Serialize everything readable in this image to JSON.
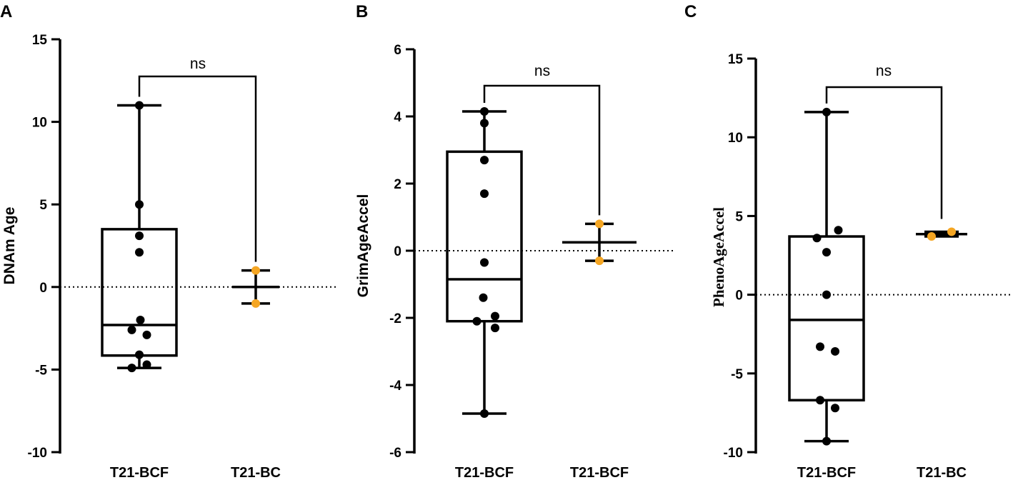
{
  "chart_data": [
    {
      "type": "box",
      "panel": "A",
      "ylabel": "DNAm Age",
      "ylim": [
        -10,
        15
      ],
      "yticks": [
        -10,
        -5,
        0,
        5,
        10,
        15
      ],
      "categories": [
        "T21-BCF",
        "T21-BC"
      ],
      "reference_line": 0,
      "significance": "ns",
      "box": {
        "min": -4.9,
        "q1": -4.15,
        "median": -2.3,
        "q3": 3.5,
        "max": 11.0
      },
      "points_group1": [
        11.0,
        5.0,
        3.1,
        2.1,
        -2.0,
        -2.6,
        -2.9,
        -4.1,
        -4.7,
        -4.9
      ],
      "points_group1_offset": [
        0,
        0,
        0,
        0,
        0.05,
        -0.35,
        0.35,
        0,
        0.35,
        -0.35
      ],
      "group2": {
        "mean": 0.0,
        "upper": 1.0,
        "lower": -1.0,
        "points": [
          1.0,
          -1.0
        ]
      },
      "colors": {
        "group1_points": "#000000",
        "group2_points": "#f5a623"
      }
    },
    {
      "type": "box",
      "panel": "B",
      "ylabel": "GrimAgeAccel",
      "ylim": [
        -6,
        6
      ],
      "yticks": [
        -6,
        -4,
        -2,
        0,
        2,
        4,
        6
      ],
      "categories": [
        "T21-BCF",
        "T21-BCF"
      ],
      "reference_line": 0,
      "significance": "ns",
      "box": {
        "min": -4.85,
        "q1": -2.1,
        "median": -0.85,
        "q3": 2.95,
        "max": 4.15
      },
      "points_group1": [
        4.15,
        3.8,
        2.7,
        1.7,
        -0.35,
        -1.4,
        -1.95,
        -2.1,
        -2.3,
        -4.85
      ],
      "points_group1_offset": [
        0,
        0,
        0,
        0,
        0,
        -0.05,
        0.5,
        -0.35,
        0.5,
        0
      ],
      "group2": {
        "mean": 0.25,
        "upper": 0.8,
        "lower": -0.3,
        "points": [
          0.8,
          -0.3
        ]
      },
      "colors": {
        "group1_points": "#000000",
        "group2_points": "#f5a623"
      }
    },
    {
      "type": "box",
      "panel": "C",
      "ylabel": "PhenoAgeAccel",
      "ylim": [
        -10,
        15
      ],
      "yticks": [
        -10,
        -5,
        0,
        5,
        10,
        15
      ],
      "categories": [
        "T21-BCF",
        "T21-BC"
      ],
      "reference_line": 0,
      "significance": "ns",
      "box": {
        "min": -9.3,
        "q1": -6.7,
        "median": -1.6,
        "q3": 3.7,
        "max": 11.6
      },
      "points_group1": [
        11.6,
        4.1,
        3.6,
        2.7,
        0.0,
        -3.3,
        -3.6,
        -6.7,
        -7.2,
        -9.3
      ],
      "points_group1_offset": [
        0,
        0.55,
        -0.45,
        0,
        0,
        -0.3,
        0.4,
        -0.3,
        0.4,
        0
      ],
      "group2": {
        "mean": 3.85,
        "upper": 4.0,
        "lower": 3.7,
        "points": [
          4.0,
          3.7
        ]
      },
      "colors": {
        "group1_points": "#000000",
        "group2_points": "#f5a623"
      }
    }
  ]
}
